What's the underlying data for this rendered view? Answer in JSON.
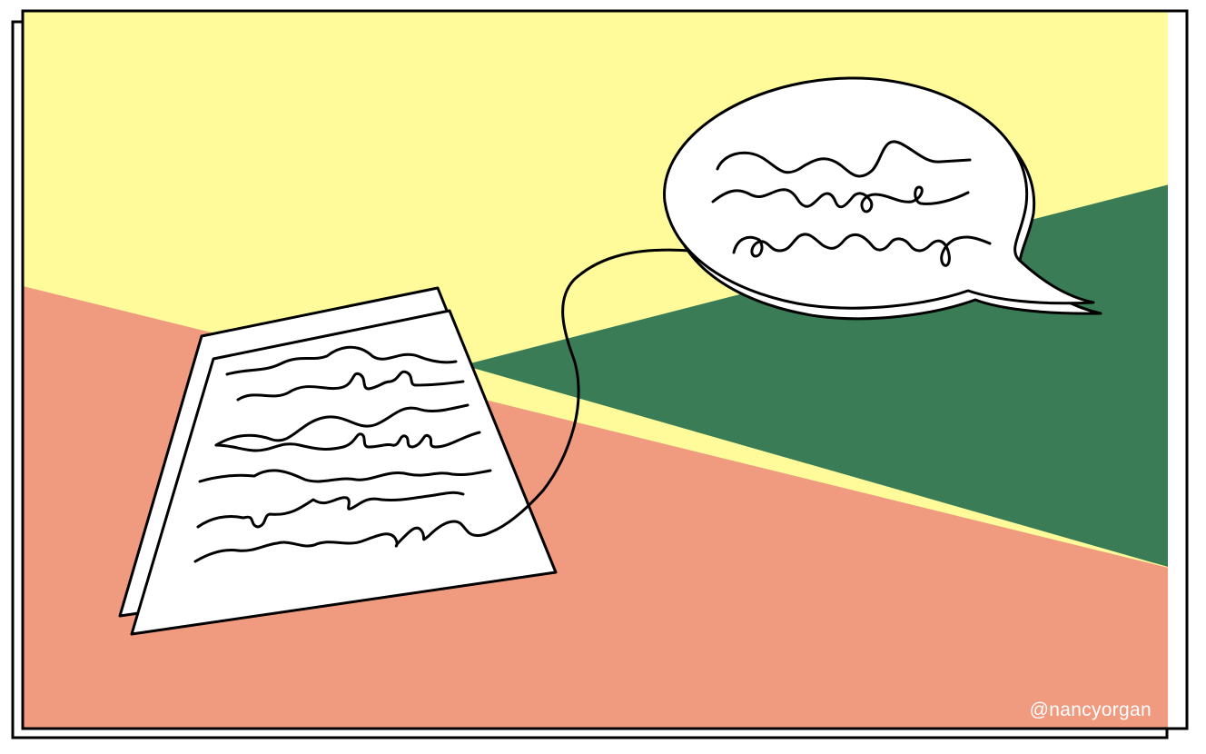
{
  "artwork": {
    "colors": {
      "yellow": "#fffb9a",
      "salmon": "#f09a80",
      "green": "#3a7c56",
      "ink": "#000000",
      "paper": "#ffffff"
    },
    "objects": [
      "paper-sheet",
      "scribbled-text-lines",
      "speech-bubble",
      "connecting-line"
    ],
    "credit": "@nancyorgan"
  }
}
